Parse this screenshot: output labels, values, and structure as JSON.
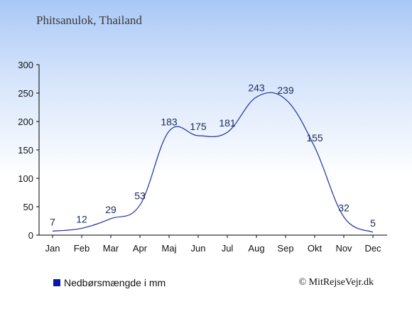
{
  "title": "Phitsanulok, Thailand",
  "legend_label": "Nedbørsmængde i mm",
  "credit": "© MitRejseVejr.dk",
  "colors": {
    "line": "#1f2fa0",
    "legend_swatch": "#0a1aa8",
    "axis": "#000000",
    "value_label": "#1a2a5a"
  },
  "chart_data": {
    "type": "line",
    "title": "Phitsanulok, Thailand",
    "xlabel": "",
    "ylabel": "",
    "categories": [
      "Jan",
      "Feb",
      "Mar",
      "Apr",
      "Maj",
      "Jun",
      "Jul",
      "Aug",
      "Sep",
      "Okt",
      "Nov",
      "Dec"
    ],
    "series": [
      {
        "name": "Nedbørsmængde i mm",
        "values": [
          7,
          12,
          29,
          53,
          183,
          175,
          181,
          243,
          239,
          155,
          32,
          5
        ]
      }
    ],
    "ylim": [
      0,
      300
    ],
    "yticks": [
      0,
      50,
      100,
      150,
      200,
      250,
      300
    ],
    "grid": false,
    "legend": "bottom-left"
  }
}
